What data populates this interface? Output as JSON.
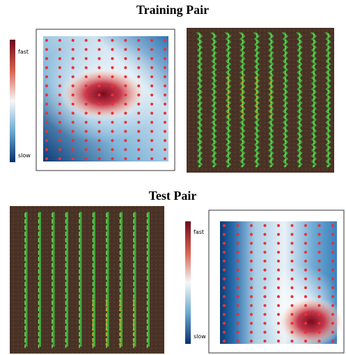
{
  "training": {
    "title": "Training Pair",
    "colorbar": {
      "top": "fast",
      "bottom": "slow"
    }
  },
  "test": {
    "title": "Test Pair",
    "colorbar": {
      "top": "fast",
      "bottom": "slow"
    }
  }
}
